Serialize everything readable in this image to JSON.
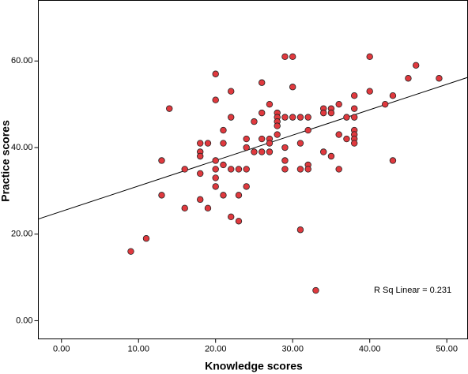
{
  "chart_data": {
    "type": "scatter",
    "x_label": "Knowledge scores",
    "y_label": "Practice scores",
    "annotation": "R Sq Linear = 0.231",
    "color": "#e0393e",
    "x": [
      9,
      11,
      13,
      13,
      14,
      16,
      16,
      18,
      18,
      18,
      18,
      18,
      19,
      19,
      20,
      20,
      20,
      20,
      20,
      20,
      21,
      21,
      21,
      21,
      22,
      22,
      22,
      22,
      23,
      23,
      23,
      24,
      24,
      24,
      24,
      25,
      25,
      26,
      26,
      26,
      26,
      27,
      27,
      27,
      27,
      28,
      28,
      28,
      28,
      28,
      29,
      29,
      29,
      29,
      29,
      30,
      30,
      30,
      31,
      31,
      31,
      31,
      32,
      32,
      32,
      32,
      33,
      34,
      34,
      34,
      35,
      35,
      35,
      36,
      36,
      36,
      37,
      37,
      38,
      38,
      38,
      38,
      38,
      38,
      38,
      40,
      40,
      42,
      43,
      43,
      45,
      46,
      49
    ],
    "values": [
      16,
      19,
      37,
      29,
      49,
      35,
      26,
      41,
      39,
      38,
      34,
      28,
      41,
      26,
      57,
      51,
      37,
      35,
      33,
      31,
      44,
      41,
      36,
      29,
      53,
      47,
      35,
      24,
      35,
      29,
      23,
      42,
      40,
      35,
      31,
      46,
      39,
      55,
      48,
      42,
      39,
      50,
      42,
      41,
      39,
      48,
      47,
      46,
      45,
      43,
      61,
      47,
      40,
      37,
      35,
      61,
      54,
      47,
      47,
      41,
      35,
      21,
      47,
      44,
      36,
      35,
      7,
      49,
      48,
      39,
      49,
      48,
      38,
      50,
      43,
      35,
      47,
      42,
      52,
      49,
      47,
      44,
      43,
      42,
      41,
      61,
      53,
      50,
      52,
      37,
      56,
      59,
      56
    ],
    "trendline": {
      "x": [
        -3,
        52.7
      ],
      "y": [
        23.5,
        56.2
      ]
    },
    "xlim": [
      -3,
      52.7
    ],
    "ylim": [
      -4.2,
      74
    ],
    "xticks": [
      {
        "value": 0,
        "label": "0.00"
      },
      {
        "value": 10,
        "label": "10.00"
      },
      {
        "value": 20,
        "label": "20.00"
      },
      {
        "value": 30,
        "label": "30.00"
      },
      {
        "value": 40,
        "label": "40.00"
      },
      {
        "value": 50,
        "label": "50.00"
      }
    ],
    "yticks": [
      {
        "value": 0,
        "label": "0.00"
      },
      {
        "value": 20,
        "label": "20.00"
      },
      {
        "value": 40,
        "label": "40.00"
      },
      {
        "value": 60,
        "label": "60.00"
      }
    ]
  }
}
